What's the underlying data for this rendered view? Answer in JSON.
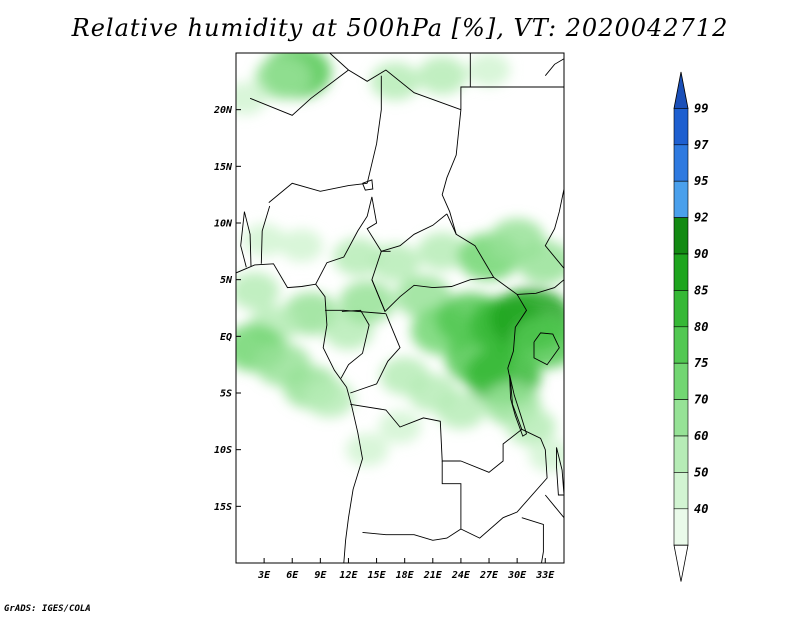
{
  "title": "Relative humidity at 500hPa [%], VT: 2020042712",
  "credit": "GrADS: IGES/COLA",
  "lat_labels": [
    {
      "lat": 20,
      "label": "20N"
    },
    {
      "lat": 15,
      "label": "15N"
    },
    {
      "lat": 10,
      "label": "10N"
    },
    {
      "lat": 5,
      "label": "5N"
    },
    {
      "lat": 0,
      "label": "EQ"
    },
    {
      "lat": -5,
      "label": "5S"
    },
    {
      "lat": -10,
      "label": "10S"
    },
    {
      "lat": -15,
      "label": "15S"
    }
  ],
  "lon_labels": [
    {
      "lon": 3,
      "label": "3E"
    },
    {
      "lon": 6,
      "label": "6E"
    },
    {
      "lon": 9,
      "label": "9E"
    },
    {
      "lon": 12,
      "label": "12E"
    },
    {
      "lon": 15,
      "label": "15E"
    },
    {
      "lon": 18,
      "label": "18E"
    },
    {
      "lon": 21,
      "label": "21E"
    },
    {
      "lon": 24,
      "label": "24E"
    },
    {
      "lon": 27,
      "label": "27E"
    },
    {
      "lon": 30,
      "label": "30E"
    },
    {
      "lon": 33,
      "label": "33E"
    }
  ],
  "extent": {
    "lon_min": 0,
    "lon_max": 35,
    "lat_min": -20,
    "lat_max": 25
  },
  "colorbar": {
    "levels": [
      {
        "label": "99",
        "color": "#1e5fd0"
      },
      {
        "label": "97",
        "color": "#2f7ae0"
      },
      {
        "label": "95",
        "color": "#4aa0ec"
      },
      {
        "label": "92",
        "color": "#128a12"
      },
      {
        "label": "90",
        "color": "#1ea51e"
      },
      {
        "label": "85",
        "color": "#36b836"
      },
      {
        "label": "80",
        "color": "#52c852"
      },
      {
        "label": "75",
        "color": "#72d672"
      },
      {
        "label": "70",
        "color": "#96e296"
      },
      {
        "label": "60",
        "color": "#b6ecb6"
      },
      {
        "label": "50",
        "color": "#d2f4d2"
      },
      {
        "label": "40",
        "color": "#eafaea"
      }
    ],
    "top_color": "#1a4fb8",
    "bottom_color": "#ffffff"
  },
  "humidity_blobs": [
    {
      "lon": 6.5,
      "lat": 23.3,
      "level": 6
    },
    {
      "lon": 5,
      "lat": 22.8,
      "level": 8
    },
    {
      "lon": 17,
      "lat": 22.5,
      "level": 9
    },
    {
      "lon": 22,
      "lat": 23,
      "level": 9
    },
    {
      "lon": 27,
      "lat": 23.5,
      "level": 10
    },
    {
      "lon": 1,
      "lat": 21,
      "level": 10
    },
    {
      "lon": 3,
      "lat": 8.5,
      "level": 10
    },
    {
      "lon": 7,
      "lat": 8,
      "level": 10
    },
    {
      "lon": 2,
      "lat": 4,
      "level": 9
    },
    {
      "lon": 8,
      "lat": 2,
      "level": 8
    },
    {
      "lon": 4,
      "lat": 1,
      "level": 9
    },
    {
      "lon": 2,
      "lat": -1,
      "level": 7
    },
    {
      "lon": 5,
      "lat": -2.5,
      "level": 8
    },
    {
      "lon": 8,
      "lat": -4.5,
      "level": 8
    },
    {
      "lon": 10,
      "lat": -5.5,
      "level": 9
    },
    {
      "lon": 12,
      "lat": 0.5,
      "level": 9
    },
    {
      "lon": 14,
      "lat": 3,
      "level": 8
    },
    {
      "lon": 13,
      "lat": 7,
      "level": 9
    },
    {
      "lon": 17,
      "lat": 6.5,
      "level": 9
    },
    {
      "lon": 22,
      "lat": 7.5,
      "level": 9
    },
    {
      "lon": 27,
      "lat": 7,
      "level": 7
    },
    {
      "lon": 30,
      "lat": 8.5,
      "level": 8
    },
    {
      "lon": 33,
      "lat": 6.5,
      "level": 8
    },
    {
      "lon": 20,
      "lat": 3.5,
      "level": 8
    },
    {
      "lon": 22,
      "lat": 0.5,
      "level": 7
    },
    {
      "lon": 25,
      "lat": 1.5,
      "level": 6
    },
    {
      "lon": 26,
      "lat": -2,
      "level": 6
    },
    {
      "lon": 28.5,
      "lat": -3.5,
      "level": 5
    },
    {
      "lon": 29,
      "lat": 1,
      "level": 5
    },
    {
      "lon": 31.5,
      "lat": 1.5,
      "level": 4
    },
    {
      "lon": 33,
      "lat": -0.5,
      "level": 6
    },
    {
      "lon": 29.5,
      "lat": -6,
      "level": 8
    },
    {
      "lon": 31.5,
      "lat": -8,
      "level": 9
    },
    {
      "lon": 33.5,
      "lat": -10.5,
      "level": 10
    },
    {
      "lon": 18,
      "lat": -3.5,
      "level": 9
    },
    {
      "lon": 21,
      "lat": -5,
      "level": 9
    },
    {
      "lon": 24,
      "lat": -6.5,
      "level": 9
    },
    {
      "lon": 14,
      "lat": -10,
      "level": 10
    },
    {
      "lon": 17.5,
      "lat": -8,
      "level": 10
    }
  ],
  "borders": [
    {
      "name": "coast",
      "points": [
        [
          0,
          5.6
        ],
        [
          2,
          6.3
        ],
        [
          4,
          6.4
        ],
        [
          5.5,
          4.3
        ],
        [
          7,
          4.4
        ],
        [
          8.5,
          4.6
        ],
        [
          9.5,
          3.5
        ],
        [
          9.7,
          1
        ],
        [
          9.3,
          -1
        ],
        [
          10.5,
          -3
        ],
        [
          11.8,
          -4.5
        ],
        [
          12.3,
          -6
        ],
        [
          13,
          -8.5
        ],
        [
          13.5,
          -10.8
        ],
        [
          12.5,
          -13.5
        ],
        [
          12,
          -16
        ],
        [
          11.7,
          -18
        ],
        [
          11.5,
          -20
        ]
      ]
    },
    {
      "name": "niger-algeria",
      "points": [
        [
          1.5,
          21
        ],
        [
          6,
          19.5
        ],
        [
          8,
          21
        ],
        [
          12,
          23.5
        ]
      ]
    },
    {
      "name": "libya-west",
      "points": [
        [
          10,
          25
        ],
        [
          12,
          23.5
        ],
        [
          14,
          22.5
        ],
        [
          16,
          23.5
        ],
        [
          19,
          21.5
        ],
        [
          24,
          20
        ]
      ]
    },
    {
      "name": "egypt-sudan",
      "points": [
        [
          24,
          20
        ],
        [
          24,
          22
        ],
        [
          37,
          22
        ]
      ]
    },
    {
      "name": "egypt-libya",
      "points": [
        [
          25,
          22
        ],
        [
          25,
          25
        ]
      ]
    },
    {
      "name": "chad-sudan",
      "points": [
        [
          24,
          20
        ],
        [
          23.5,
          16
        ],
        [
          22.5,
          14
        ],
        [
          22,
          12.5
        ],
        [
          22.8,
          11
        ],
        [
          23.5,
          9
        ]
      ]
    },
    {
      "name": "chad-niger",
      "points": [
        [
          15.5,
          23
        ],
        [
          15.5,
          20
        ],
        [
          15,
          17
        ],
        [
          14,
          13.5
        ]
      ]
    },
    {
      "name": "niger-nigeria",
      "points": [
        [
          3.5,
          11.8
        ],
        [
          6,
          13.5
        ],
        [
          9,
          12.8
        ],
        [
          12,
          13.3
        ],
        [
          14,
          13.5
        ]
      ]
    },
    {
      "name": "benin-nigeria",
      "points": [
        [
          2.7,
          6.4
        ],
        [
          2.8,
          9.3
        ],
        [
          3.6,
          11.5
        ]
      ]
    },
    {
      "name": "benin-togo",
      "points": [
        [
          1.6,
          6.2
        ],
        [
          1.5,
          9
        ],
        [
          0.9,
          11
        ]
      ]
    },
    {
      "name": "nigeria-cameroon",
      "points": [
        [
          8.5,
          4.6
        ],
        [
          9.7,
          6.5
        ],
        [
          11.5,
          7
        ],
        [
          13,
          9.3
        ],
        [
          14,
          10.6
        ],
        [
          14.5,
          12.3
        ]
      ]
    },
    {
      "name": "cameroon-chad",
      "points": [
        [
          14.5,
          12.3
        ],
        [
          15,
          10
        ],
        [
          14,
          9.5
        ],
        [
          15.5,
          7.5
        ],
        [
          16.5,
          7.5
        ]
      ]
    },
    {
      "name": "car-chad",
      "points": [
        [
          15.5,
          7.5
        ],
        [
          17.5,
          8
        ],
        [
          19,
          9
        ],
        [
          21,
          9.8
        ],
        [
          22.5,
          10.8
        ]
      ]
    },
    {
      "name": "car-sudan",
      "points": [
        [
          22.5,
          10.8
        ],
        [
          23.5,
          9
        ],
        [
          25.5,
          8
        ],
        [
          27.5,
          5.2
        ]
      ]
    },
    {
      "name": "car-congo",
      "points": [
        [
          14.5,
          5
        ],
        [
          15.9,
          2.2
        ],
        [
          17.5,
          3.5
        ],
        [
          19,
          4.5
        ],
        [
          21,
          4.3
        ],
        [
          23,
          4.4
        ],
        [
          25,
          5
        ],
        [
          27.5,
          5.2
        ]
      ]
    },
    {
      "name": "cameroon-car",
      "points": [
        [
          15.5,
          7.5
        ],
        [
          14.5,
          5
        ],
        [
          15.9,
          2.2
        ]
      ]
    },
    {
      "name": "cameroon-gabon",
      "points": [
        [
          9.5,
          2.3
        ],
        [
          11.5,
          2.3
        ],
        [
          13,
          2.2
        ],
        [
          16,
          2
        ]
      ]
    },
    {
      "name": "gabon-congo",
      "points": [
        [
          11.3,
          2.2
        ],
        [
          13.3,
          2.3
        ],
        [
          14.2,
          1
        ],
        [
          13.5,
          -1.5
        ],
        [
          12,
          -2.5
        ],
        [
          11.2,
          -3.7
        ]
      ]
    },
    {
      "name": "congo-drc",
      "points": [
        [
          16,
          2
        ],
        [
          17.5,
          -1
        ],
        [
          16.2,
          -2.2
        ],
        [
          15,
          -4.2
        ],
        [
          12.2,
          -5
        ]
      ]
    },
    {
      "name": "drc-angola",
      "points": [
        [
          12.2,
          -6
        ],
        [
          16,
          -6.5
        ],
        [
          17.5,
          -8
        ],
        [
          20,
          -7.2
        ],
        [
          21.8,
          -7.5
        ],
        [
          22,
          -11
        ],
        [
          24,
          -11
        ]
      ]
    },
    {
      "name": "angola-zambia",
      "points": [
        [
          22,
          -11
        ],
        [
          22,
          -13
        ],
        [
          24,
          -13
        ],
        [
          24,
          -17
        ],
        [
          22.5,
          -17.8
        ],
        [
          21,
          -18
        ],
        [
          19,
          -17.5
        ],
        [
          16,
          -17.5
        ],
        [
          13.5,
          -17.3
        ]
      ]
    },
    {
      "name": "drc-east",
      "points": [
        [
          27.5,
          5.2
        ],
        [
          30,
          3.7
        ],
        [
          31,
          2.3
        ],
        [
          29.8,
          0.8
        ],
        [
          29.6,
          -1.3
        ],
        [
          29,
          -2.8
        ],
        [
          29.3,
          -4
        ],
        [
          29.5,
          -6
        ],
        [
          30.5,
          -8.2
        ],
        [
          28.5,
          -9.5
        ],
        [
          28.5,
          -11
        ],
        [
          27,
          -12
        ],
        [
          24,
          -11
        ]
      ]
    },
    {
      "name": "zambia-east",
      "points": [
        [
          30.5,
          -8.2
        ],
        [
          32.5,
          -9
        ],
        [
          33,
          -10
        ],
        [
          33.2,
          -12.5
        ],
        [
          30,
          -15.5
        ],
        [
          28.5,
          -16
        ],
        [
          26,
          -17.8
        ],
        [
          24,
          -17
        ]
      ]
    },
    {
      "name": "south-sudan-uganda",
      "points": [
        [
          30,
          3.7
        ],
        [
          32,
          3.8
        ],
        [
          34,
          4.3
        ],
        [
          35,
          5
        ]
      ]
    },
    {
      "name": "sudan-ethiopia",
      "points": [
        [
          35,
          13
        ],
        [
          34.5,
          11
        ],
        [
          34,
          9.5
        ],
        [
          33,
          8
        ],
        [
          35,
          6
        ]
      ]
    },
    {
      "name": "lake-victoria",
      "points": [
        [
          31.8,
          -0.5
        ],
        [
          32.5,
          0.3
        ],
        [
          33.8,
          0.2
        ],
        [
          34.5,
          -1
        ],
        [
          33.2,
          -2.5
        ],
        [
          31.8,
          -1.9
        ],
        [
          31.8,
          -0.5
        ]
      ]
    },
    {
      "name": "lake-tanganyika",
      "points": [
        [
          29.2,
          -3.4
        ],
        [
          29.7,
          -5.2
        ],
        [
          30.4,
          -7
        ],
        [
          31,
          -8.6
        ],
        [
          30.6,
          -8.8
        ],
        [
          29.8,
          -7
        ],
        [
          29.3,
          -5.5
        ],
        [
          29.2,
          -3.4
        ]
      ]
    },
    {
      "name": "lake-malawi",
      "points": [
        [
          34.2,
          -9.8
        ],
        [
          34.8,
          -11.8
        ],
        [
          35,
          -14
        ],
        [
          34.4,
          -14
        ],
        [
          34.2,
          -11.5
        ],
        [
          34.2,
          -9.8
        ]
      ]
    },
    {
      "name": "lake-chad",
      "points": [
        [
          13.5,
          13.5
        ],
        [
          14.5,
          13.8
        ],
        [
          14.6,
          13
        ],
        [
          13.8,
          12.9
        ],
        [
          13.5,
          13.5
        ]
      ]
    },
    {
      "name": "malawi-moz",
      "points": [
        [
          33,
          -14
        ],
        [
          34,
          -15
        ],
        [
          35,
          -16
        ],
        [
          35.5,
          -17
        ]
      ]
    },
    {
      "name": "zimbabwe-moz",
      "points": [
        [
          30.5,
          -16
        ],
        [
          32.8,
          -16.6
        ],
        [
          32.8,
          -19
        ],
        [
          32.6,
          -20
        ]
      ]
    },
    {
      "name": "nile-red-sea",
      "points": [
        [
          33,
          23
        ],
        [
          34,
          24
        ],
        [
          35,
          24.5
        ]
      ]
    },
    {
      "name": "togo-ghana",
      "points": [
        [
          0.9,
          11
        ],
        [
          0.5,
          8
        ],
        [
          1.1,
          6.1
        ]
      ]
    }
  ]
}
